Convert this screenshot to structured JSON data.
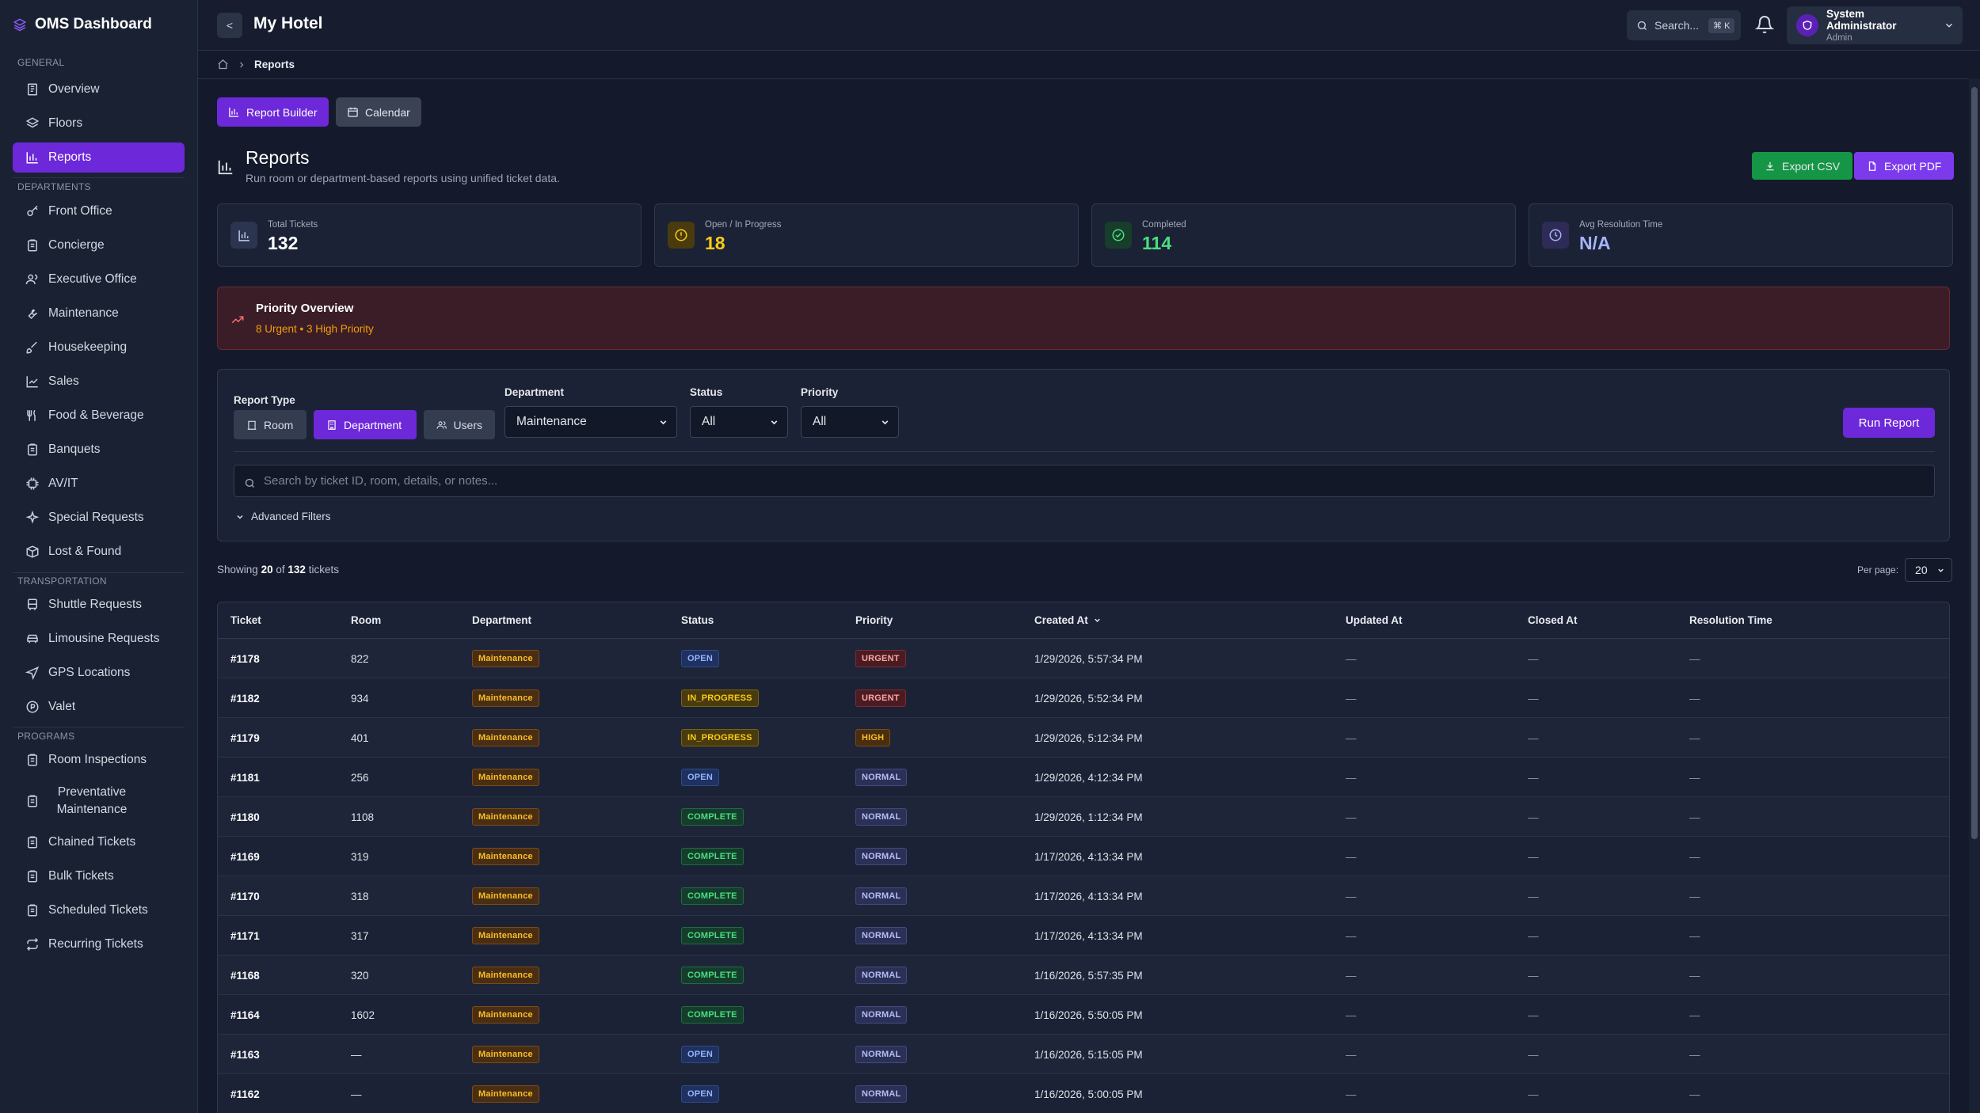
{
  "brand": {
    "title": "OMS Dashboard",
    "icon": "layers-icon"
  },
  "sidebar": {
    "sections": {
      "general": "GENERAL",
      "departments": "DEPARTMENTS",
      "transportation": "TRANSPORTATION",
      "programs": "PROGRAMS"
    },
    "general": [
      {
        "label": "Overview",
        "icon": "overview-icon"
      },
      {
        "label": "Floors",
        "icon": "layers-icon"
      },
      {
        "label": "Reports",
        "icon": "bar-chart-icon",
        "active": true
      }
    ],
    "departments": [
      {
        "label": "Front Office",
        "icon": "key-icon"
      },
      {
        "label": "Concierge",
        "icon": "clipboard-icon"
      },
      {
        "label": "Executive Office",
        "icon": "users-icon"
      },
      {
        "label": "Maintenance",
        "icon": "wrench-icon"
      },
      {
        "label": "Housekeeping",
        "icon": "brush-icon"
      },
      {
        "label": "Sales",
        "icon": "trend-icon"
      },
      {
        "label": "Food & Beverage",
        "icon": "utensils-icon"
      },
      {
        "label": "Banquets",
        "icon": "clipboard-icon"
      },
      {
        "label": "AV/IT",
        "icon": "chip-icon"
      },
      {
        "label": "Special Requests",
        "icon": "sparkle-icon"
      },
      {
        "label": "Lost & Found",
        "icon": "box-icon"
      }
    ],
    "transportation": [
      {
        "label": "Shuttle Requests",
        "icon": "bus-icon"
      },
      {
        "label": "Limousine Requests",
        "icon": "car-icon"
      },
      {
        "label": "GPS Locations",
        "icon": "navigation-icon"
      },
      {
        "label": "Valet",
        "icon": "parking-icon"
      }
    ],
    "programs": [
      {
        "label": "Room Inspections",
        "icon": "clipboard-icon"
      },
      {
        "label": "Preventative Maintenance",
        "icon": "clipboard-icon"
      },
      {
        "label": "Chained Tickets",
        "icon": "clipboard-icon"
      },
      {
        "label": "Bulk Tickets",
        "icon": "clipboard-icon"
      },
      {
        "label": "Scheduled Tickets",
        "icon": "clipboard-icon"
      },
      {
        "label": "Recurring Tickets",
        "icon": "repeat-icon"
      }
    ]
  },
  "topbar": {
    "back_label": "<",
    "title": "My Hotel",
    "search_label": "Search...",
    "search_shortcut": "⌘ K",
    "user_name": "System Administrator",
    "user_role": "Admin"
  },
  "breadcrumb": {
    "current": "Reports"
  },
  "tabs": {
    "report_builder": "Report Builder",
    "calendar": "Calendar"
  },
  "header": {
    "title": "Reports",
    "subtitle": "Run room or department-based reports using unified ticket data.",
    "export_csv": "Export CSV",
    "export_pdf": "Export PDF"
  },
  "stats": [
    {
      "label": "Total Tickets",
      "value": "132",
      "color": "#ffffff"
    },
    {
      "label": "Open / In Progress",
      "value": "18",
      "color": "#facc15"
    },
    {
      "label": "Completed",
      "value": "114",
      "color": "#4ade80"
    },
    {
      "label": "Avg Resolution Time",
      "value": "N/A",
      "color": "#a5b4fc"
    }
  ],
  "priority": {
    "title": "Priority Overview",
    "summary": "8 Urgent • 3 High Priority"
  },
  "filters": {
    "report_type_label": "Report Type",
    "types": [
      "Room",
      "Department",
      "Users"
    ],
    "selected_type": "Department",
    "department_label": "Department",
    "department_value": "Maintenance",
    "status_label": "Status",
    "status_value": "All",
    "priority_label": "Priority",
    "priority_value": "All",
    "run_label": "Run Report",
    "search_placeholder": "Search by ticket ID, room, details, or notes...",
    "advanced_label": "Advanced Filters"
  },
  "results": {
    "prefix": "Showing",
    "shown": "20",
    "of": "of",
    "total": "132",
    "suffix": "tickets",
    "per_page_label": "Per page:",
    "per_page_value": "20"
  },
  "table": {
    "columns": [
      "Ticket",
      "Room",
      "Department",
      "Status",
      "Priority",
      "Created At",
      "Updated At",
      "Closed At",
      "Resolution Time"
    ],
    "sort_column": "Created At",
    "rows": [
      {
        "ticket": "#1178",
        "room": "822",
        "dept": "Maintenance",
        "status": "OPEN",
        "priority": "URGENT",
        "created": "1/29/2026, 5:57:34 PM",
        "updated": "—",
        "closed": "—",
        "resolution": "—"
      },
      {
        "ticket": "#1182",
        "room": "934",
        "dept": "Maintenance",
        "status": "IN_PROGRESS",
        "priority": "URGENT",
        "created": "1/29/2026, 5:52:34 PM",
        "updated": "—",
        "closed": "—",
        "resolution": "—"
      },
      {
        "ticket": "#1179",
        "room": "401",
        "dept": "Maintenance",
        "status": "IN_PROGRESS",
        "priority": "HIGH",
        "created": "1/29/2026, 5:12:34 PM",
        "updated": "—",
        "closed": "—",
        "resolution": "—"
      },
      {
        "ticket": "#1181",
        "room": "256",
        "dept": "Maintenance",
        "status": "OPEN",
        "priority": "NORMAL",
        "created": "1/29/2026, 4:12:34 PM",
        "updated": "—",
        "closed": "—",
        "resolution": "—"
      },
      {
        "ticket": "#1180",
        "room": "1108",
        "dept": "Maintenance",
        "status": "COMPLETE",
        "priority": "NORMAL",
        "created": "1/29/2026, 1:12:34 PM",
        "updated": "—",
        "closed": "—",
        "resolution": "—"
      },
      {
        "ticket": "#1169",
        "room": "319",
        "dept": "Maintenance",
        "status": "COMPLETE",
        "priority": "NORMAL",
        "created": "1/17/2026, 4:13:34 PM",
        "updated": "—",
        "closed": "—",
        "resolution": "—"
      },
      {
        "ticket": "#1170",
        "room": "318",
        "dept": "Maintenance",
        "status": "COMPLETE",
        "priority": "NORMAL",
        "created": "1/17/2026, 4:13:34 PM",
        "updated": "—",
        "closed": "—",
        "resolution": "—"
      },
      {
        "ticket": "#1171",
        "room": "317",
        "dept": "Maintenance",
        "status": "COMPLETE",
        "priority": "NORMAL",
        "created": "1/17/2026, 4:13:34 PM",
        "updated": "—",
        "closed": "—",
        "resolution": "—"
      },
      {
        "ticket": "#1168",
        "room": "320",
        "dept": "Maintenance",
        "status": "COMPLETE",
        "priority": "NORMAL",
        "created": "1/16/2026, 5:57:35 PM",
        "updated": "—",
        "closed": "—",
        "resolution": "—"
      },
      {
        "ticket": "#1164",
        "room": "1602",
        "dept": "Maintenance",
        "status": "COMPLETE",
        "priority": "NORMAL",
        "created": "1/16/2026, 5:50:05 PM",
        "updated": "—",
        "closed": "—",
        "resolution": "—"
      },
      {
        "ticket": "#1163",
        "room": "—",
        "dept": "Maintenance",
        "status": "OPEN",
        "priority": "NORMAL",
        "created": "1/16/2026, 5:15:05 PM",
        "updated": "—",
        "closed": "—",
        "resolution": "—"
      },
      {
        "ticket": "#1162",
        "room": "—",
        "dept": "Maintenance",
        "status": "OPEN",
        "priority": "NORMAL",
        "created": "1/16/2026, 5:00:05 PM",
        "updated": "—",
        "closed": "—",
        "resolution": "—"
      }
    ]
  }
}
